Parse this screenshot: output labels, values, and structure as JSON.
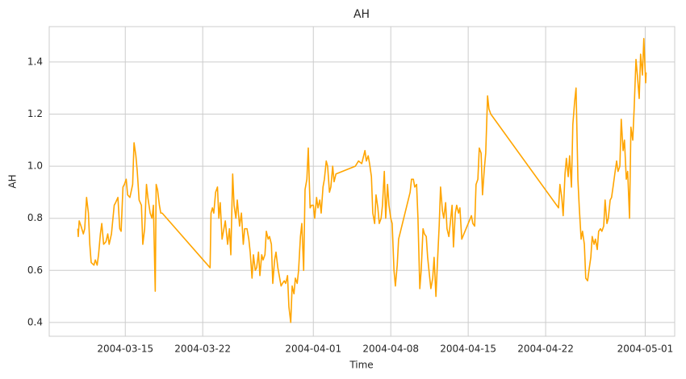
{
  "chart_data": {
    "type": "line",
    "title": "AH",
    "x_label": "Time",
    "y_label": "AH",
    "color": "#ffa500",
    "grid": true,
    "xlim": [
      "2004-03-08 03:00",
      "2004-05-03 16:00"
    ],
    "xticks": [
      "2004-03-15",
      "2004-03-22",
      "2004-04-01",
      "2004-04-08",
      "2004-04-15",
      "2004-04-22",
      "2004-05-01"
    ],
    "ylim": [
      0.347,
      1.536
    ],
    "yticks": [
      0.4,
      0.6,
      0.8,
      {
        "value": 1,
        "label": "1.0"
      },
      1.2,
      1.4
    ],
    "x": [
      "2004-03-10 17:00",
      "2004-03-10 18:00",
      "2004-03-10 20:00",
      "2004-03-11 00:00",
      "2004-03-11 05:00",
      "2004-03-11 08:00",
      "2004-03-11 12:00",
      "2004-03-11 16:00",
      "2004-03-11 19:00",
      "2004-03-11 22:00",
      "2004-03-12 04:00",
      "2004-03-12 07:00",
      "2004-03-12 11:00",
      "2004-03-12 14:00",
      "2004-03-12 18:00",
      "2004-03-12 21:00",
      "2004-03-13 01:00",
      "2004-03-13 06:00",
      "2004-03-13 10:00",
      "2004-03-13 13:00",
      "2004-03-13 18:00",
      "2004-03-14 00:00",
      "2004-03-14 03:00",
      "2004-03-14 08:00",
      "2004-03-14 12:00",
      "2004-03-14 15:00",
      "2004-03-14 19:00",
      "2004-03-14 22:00",
      "2004-03-15 02:00",
      "2004-03-15 05:00",
      "2004-03-15 10:00",
      "2004-03-15 16:00",
      "2004-03-15 19:00",
      "2004-03-15 23:00",
      "2004-03-16 02:00",
      "2004-03-16 06:00",
      "2004-03-16 11:00",
      "2004-03-16 14:00",
      "2004-03-16 18:00",
      "2004-03-16 22:00",
      "2004-03-17 01:00",
      "2004-03-17 06:00",
      "2004-03-17 10:00",
      "2004-03-17 13:00",
      "2004-03-17 17:00",
      "2004-03-17 19:00",
      "2004-03-17 22:00",
      "2004-03-18 02:00",
      "2004-03-18 05:00",
      "2004-03-18 08:00",
      "2004-03-22 16:00",
      "2004-03-22 18:00",
      "2004-03-22 21:00",
      "2004-03-23 00:00",
      "2004-03-23 04:00",
      "2004-03-23 08:00",
      "2004-03-23 11:00",
      "2004-03-23 14:00",
      "2004-03-23 18:00",
      "2004-03-23 22:00",
      "2004-03-24 01:00",
      "2004-03-24 06:00",
      "2004-03-24 10:00",
      "2004-03-24 13:00",
      "2004-03-24 17:00",
      "2004-03-24 20:00",
      "2004-03-25 00:00",
      "2004-03-25 03:00",
      "2004-03-25 08:00",
      "2004-03-25 12:00",
      "2004-03-25 16:00",
      "2004-03-25 19:00",
      "2004-03-26 00:00",
      "2004-03-26 04:00",
      "2004-03-26 07:00",
      "2004-03-26 11:00",
      "2004-03-26 14:00",
      "2004-03-26 18:00",
      "2004-03-26 21:00",
      "2004-03-27 01:00",
      "2004-03-27 04:00",
      "2004-03-27 08:00",
      "2004-03-27 11:00",
      "2004-03-27 15:00",
      "2004-03-27 18:00",
      "2004-03-27 22:00",
      "2004-03-28 01:00",
      "2004-03-28 05:00",
      "2004-03-28 08:00",
      "2004-03-28 12:00",
      "2004-03-28 15:00",
      "2004-03-28 19:00",
      "2004-03-28 22:00",
      "2004-03-29 02:00",
      "2004-03-29 05:00",
      "2004-03-29 09:00",
      "2004-03-29 12:00",
      "2004-03-29 16:00",
      "2004-03-29 19:00",
      "2004-03-29 23:00",
      "2004-03-30 02:00",
      "2004-03-30 06:00",
      "2004-03-30 09:00",
      "2004-03-30 13:00",
      "2004-03-30 16:00",
      "2004-03-30 20:00",
      "2004-03-30 23:00",
      "2004-03-31 03:00",
      "2004-03-31 06:00",
      "2004-03-31 10:00",
      "2004-03-31 13:00",
      "2004-03-31 17:00",
      "2004-03-31 20:00",
      "2004-04-01 00:00",
      "2004-04-01 03:00",
      "2004-04-01 07:00",
      "2004-04-01 10:00",
      "2004-04-01 14:00",
      "2004-04-01 17:00",
      "2004-04-01 21:00",
      "2004-04-02 00:00",
      "2004-04-02 04:00",
      "2004-04-02 07:00",
      "2004-04-02 11:00",
      "2004-04-02 14:00",
      "2004-04-02 18:00",
      "2004-04-02 21:00",
      "2004-04-03 01:00",
      "2004-04-04 19:00",
      "2004-04-05 02:00",
      "2004-04-05 09:00",
      "2004-04-05 16:00",
      "2004-04-05 19:00",
      "2004-04-05 23:00",
      "2004-04-06 02:00",
      "2004-04-06 06:00",
      "2004-04-06 09:00",
      "2004-04-06 13:00",
      "2004-04-06 16:00",
      "2004-04-06 20:00",
      "2004-04-06 23:00",
      "2004-04-07 03:00",
      "2004-04-07 06:00",
      "2004-04-07 10:00",
      "2004-04-07 13:00",
      "2004-04-07 17:00",
      "2004-04-07 20:00",
      "2004-04-08 00:00",
      "2004-04-08 03:00",
      "2004-04-08 07:00",
      "2004-04-08 10:00",
      "2004-04-08 14:00",
      "2004-04-08 17:00",
      "2004-04-09 18:00",
      "2004-04-09 21:00",
      "2004-04-10 01:00",
      "2004-04-10 04:00",
      "2004-04-10 08:00",
      "2004-04-10 11:00",
      "2004-04-10 15:00",
      "2004-04-10 18:00",
      "2004-04-10 22:00",
      "2004-04-11 01:00",
      "2004-04-11 05:00",
      "2004-04-11 08:00",
      "2004-04-11 12:00",
      "2004-04-11 15:00",
      "2004-04-11 19:00",
      "2004-04-11 22:00",
      "2004-04-12 02:00",
      "2004-04-12 05:00",
      "2004-04-12 09:00",
      "2004-04-12 12:00",
      "2004-04-12 16:00",
      "2004-04-12 19:00",
      "2004-04-12 23:00",
      "2004-04-13 02:00",
      "2004-04-13 06:00",
      "2004-04-13 09:00",
      "2004-04-13 13:00",
      "2004-04-13 16:00",
      "2004-04-13 20:00",
      "2004-04-13 23:00",
      "2004-04-14 03:00",
      "2004-04-14 06:00",
      "2004-04-14 10:00",
      "2004-04-15 07:00",
      "2004-04-15 10:00",
      "2004-04-15 14:00",
      "2004-04-15 17:00",
      "2004-04-15 21:00",
      "2004-04-16 00:00",
      "2004-04-16 04:00",
      "2004-04-16 07:00",
      "2004-04-16 11:00",
      "2004-04-16 14:00",
      "2004-04-16 18:00",
      "2004-04-16 21:00",
      "2004-04-17 01:00",
      "2004-04-23 04:00",
      "2004-04-23 07:00",
      "2004-04-23 11:00",
      "2004-04-23 14:00",
      "2004-04-23 18:00",
      "2004-04-23 21:00",
      "2004-04-24 01:00",
      "2004-04-24 04:00",
      "2004-04-24 08:00",
      "2004-04-24 11:00",
      "2004-04-24 15:00",
      "2004-04-24 18:00",
      "2004-04-24 22:00",
      "2004-04-25 01:00",
      "2004-04-25 05:00",
      "2004-04-25 08:00",
      "2004-04-25 12:00",
      "2004-04-25 15:00",
      "2004-04-25 19:00",
      "2004-04-25 22:00",
      "2004-04-26 02:00",
      "2004-04-26 05:00",
      "2004-04-26 09:00",
      "2004-04-26 12:00",
      "2004-04-26 16:00",
      "2004-04-26 19:00",
      "2004-04-26 23:00",
      "2004-04-27 02:00",
      "2004-04-27 06:00",
      "2004-04-27 09:00",
      "2004-04-27 13:00",
      "2004-04-27 16:00",
      "2004-04-27 20:00",
      "2004-04-27 23:00",
      "2004-04-28 03:00",
      "2004-04-28 06:00",
      "2004-04-28 10:00",
      "2004-04-28 13:00",
      "2004-04-28 17:00",
      "2004-04-28 20:00",
      "2004-04-29 00:00",
      "2004-04-29 03:00",
      "2004-04-29 07:00",
      "2004-04-29 10:00",
      "2004-04-29 14:00",
      "2004-04-29 17:00",
      "2004-04-29 21:00",
      "2004-04-30 00:00",
      "2004-04-30 04:00",
      "2004-04-30 07:00",
      "2004-04-30 11:00",
      "2004-04-30 14:00",
      "2004-04-30 18:00",
      "2004-04-30 21:00",
      "2004-05-01 01:00",
      "2004-05-01 02:00"
    ],
    "values": [
      0.76,
      0.73,
      0.79,
      0.77,
      0.74,
      0.76,
      0.88,
      0.82,
      0.7,
      0.63,
      0.62,
      0.64,
      0.62,
      0.66,
      0.74,
      0.78,
      0.7,
      0.71,
      0.74,
      0.7,
      0.74,
      0.85,
      0.86,
      0.88,
      0.76,
      0.75,
      0.92,
      0.93,
      0.95,
      0.89,
      0.88,
      0.93,
      1.09,
      1.04,
      0.98,
      0.87,
      0.85,
      0.7,
      0.76,
      0.93,
      0.88,
      0.82,
      0.8,
      0.85,
      0.52,
      0.93,
      0.91,
      0.85,
      0.82,
      0.82,
      0.61,
      0.82,
      0.84,
      0.82,
      0.9,
      0.92,
      0.8,
      0.86,
      0.72,
      0.76,
      0.79,
      0.7,
      0.76,
      0.66,
      0.97,
      0.85,
      0.8,
      0.87,
      0.77,
      0.82,
      0.7,
      0.76,
      0.76,
      0.72,
      0.67,
      0.57,
      0.66,
      0.6,
      0.61,
      0.67,
      0.58,
      0.66,
      0.64,
      0.66,
      0.75,
      0.72,
      0.73,
      0.7,
      0.55,
      0.64,
      0.67,
      0.61,
      0.58,
      0.54,
      0.55,
      0.56,
      0.55,
      0.58,
      0.46,
      0.4,
      0.54,
      0.51,
      0.57,
      0.55,
      0.6,
      0.73,
      0.78,
      0.6,
      0.91,
      0.95,
      1.07,
      0.84,
      0.85,
      0.85,
      0.8,
      0.88,
      0.84,
      0.87,
      0.82,
      0.92,
      0.95,
      1.02,
      1.0,
      0.9,
      0.92,
      1.0,
      0.94,
      0.97,
      1.0,
      1.02,
      1.01,
      1.06,
      1.02,
      1.04,
      1.01,
      0.96,
      0.82,
      0.78,
      0.89,
      0.84,
      0.78,
      0.8,
      0.85,
      0.98,
      0.8,
      0.93,
      0.85,
      0.8,
      0.78,
      0.6,
      0.54,
      0.62,
      0.72,
      0.9,
      0.95,
      0.95,
      0.92,
      0.93,
      0.8,
      0.53,
      0.6,
      0.76,
      0.74,
      0.73,
      0.65,
      0.58,
      0.53,
      0.57,
      0.65,
      0.5,
      0.62,
      0.77,
      0.92,
      0.83,
      0.8,
      0.86,
      0.76,
      0.73,
      0.78,
      0.85,
      0.69,
      0.82,
      0.85,
      0.82,
      0.84,
      0.72,
      0.81,
      0.78,
      0.77,
      0.93,
      0.95,
      1.07,
      1.05,
      0.89,
      0.99,
      1.05,
      1.27,
      1.22,
      1.2,
      0.84,
      0.93,
      0.88,
      0.81,
      0.97,
      1.03,
      0.96,
      1.04,
      0.92,
      1.16,
      1.25,
      1.3,
      0.95,
      0.84,
      0.72,
      0.75,
      0.7,
      0.57,
      0.56,
      0.6,
      0.65,
      0.73,
      0.7,
      0.72,
      0.68,
      0.75,
      0.76,
      0.75,
      0.77,
      0.87,
      0.78,
      0.8,
      0.87,
      0.88,
      0.93,
      0.97,
      1.02,
      0.98,
      1.0,
      1.18,
      1.06,
      1.1,
      0.95,
      0.98,
      0.8,
      1.15,
      1.1,
      1.22,
      1.41,
      1.35,
      1.26,
      1.43,
      1.35,
      1.49,
      1.32,
      1.36
    ]
  }
}
